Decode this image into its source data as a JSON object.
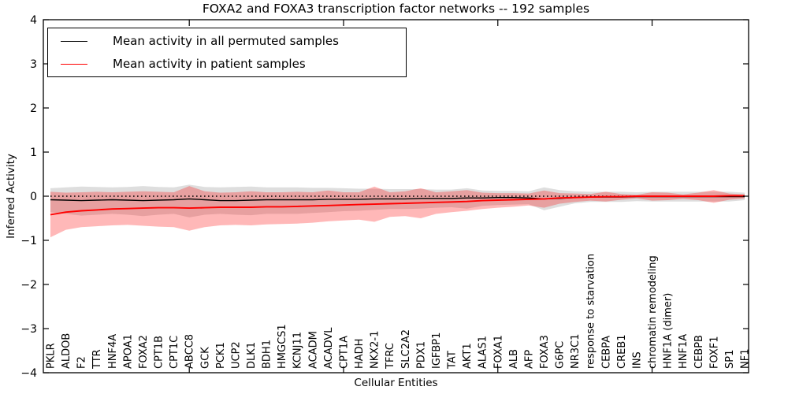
{
  "chart_data": {
    "type": "line",
    "title": "FOXA2 and FOXA3 transcription factor networks -- 192 samples",
    "xlabel": "Cellular Entities",
    "ylabel": "Inferred Activity",
    "ylim": [
      -4,
      4
    ],
    "yticks": [
      -4,
      -3,
      -2,
      -1,
      0,
      1,
      2,
      3,
      4
    ],
    "xtick_major_indices": [
      9,
      19,
      29,
      39
    ],
    "grid": false,
    "legend_position": "upper left",
    "zero_line": {
      "y": 0,
      "style": "dotted",
      "color": "#000000"
    },
    "categories": [
      "PKLR",
      "ALDOB",
      "F2",
      "TTR",
      "HNF4A",
      "APOA1",
      "FOXA2",
      "CPT1B",
      "CPT1C",
      "ABCC8",
      "GCK",
      "PCK1",
      "UCP2",
      "DLK1",
      "BDH1",
      "HMGCS1",
      "KCNJ11",
      "ACADM",
      "ACADVL",
      "CPT1A",
      "HADH",
      "NKX2-1",
      "TFRC",
      "SLC2A2",
      "PDX1",
      "IGFBP1",
      "TAT",
      "AKT1",
      "ALAS1",
      "FOXA1",
      "ALB",
      "AFP",
      "FOXA3",
      "G6PC",
      "NR3C1",
      "response to starvation",
      "CEBPA",
      "CREB1",
      "INS",
      "chromatin remodeling",
      "HNF1A (dimer)",
      "HNF1A",
      "CEBPB",
      "FOXF1",
      "SP1",
      "NF1"
    ],
    "series": [
      {
        "name": "Mean activity in all permuted samples",
        "color": "#000000",
        "line_width": 1.4,
        "band_fill": "rgba(0,0,0,0.13)",
        "values": [
          -0.08,
          -0.09,
          -0.1,
          -0.09,
          -0.08,
          -0.09,
          -0.1,
          -0.09,
          -0.08,
          -0.06,
          -0.08,
          -0.1,
          -0.1,
          -0.09,
          -0.08,
          -0.08,
          -0.08,
          -0.08,
          -0.07,
          -0.07,
          -0.07,
          -0.06,
          -0.06,
          -0.06,
          -0.05,
          -0.05,
          -0.05,
          -0.04,
          -0.04,
          -0.03,
          -0.03,
          -0.04,
          -0.06,
          -0.05,
          -0.03,
          -0.02,
          -0.02,
          -0.02,
          -0.01,
          -0.01,
          -0.01,
          -0.01,
          -0.01,
          -0.01,
          -0.01,
          -0.01
        ],
        "band_upper": [
          0.18,
          0.2,
          0.22,
          0.21,
          0.2,
          0.21,
          0.23,
          0.21,
          0.2,
          0.26,
          0.21,
          0.2,
          0.21,
          0.22,
          0.2,
          0.2,
          0.2,
          0.19,
          0.19,
          0.18,
          0.17,
          0.17,
          0.16,
          0.16,
          0.16,
          0.15,
          0.15,
          0.18,
          0.13,
          0.12,
          0.12,
          0.11,
          0.2,
          0.14,
          0.11,
          0.1,
          0.1,
          0.1,
          0.09,
          0.1,
          0.1,
          0.1,
          0.1,
          0.1,
          0.1,
          0.08
        ],
        "band_lower": [
          -0.36,
          -0.4,
          -0.44,
          -0.42,
          -0.4,
          -0.42,
          -0.45,
          -0.42,
          -0.4,
          -0.48,
          -0.42,
          -0.4,
          -0.42,
          -0.43,
          -0.4,
          -0.4,
          -0.4,
          -0.38,
          -0.36,
          -0.34,
          -0.33,
          -0.31,
          -0.29,
          -0.29,
          -0.28,
          -0.26,
          -0.25,
          -0.28,
          -0.22,
          -0.2,
          -0.19,
          -0.18,
          -0.32,
          -0.24,
          -0.16,
          -0.13,
          -0.13,
          -0.13,
          -0.11,
          -0.12,
          -0.12,
          -0.12,
          -0.12,
          -0.12,
          -0.12,
          -0.09
        ]
      },
      {
        "name": "Mean activity in patient samples",
        "color": "#ff0000",
        "line_width": 1.9,
        "band_fill": "rgba(255,0,0,0.28)",
        "values": [
          -0.42,
          -0.36,
          -0.33,
          -0.31,
          -0.29,
          -0.28,
          -0.27,
          -0.26,
          -0.26,
          -0.27,
          -0.26,
          -0.25,
          -0.25,
          -0.25,
          -0.24,
          -0.24,
          -0.23,
          -0.22,
          -0.21,
          -0.2,
          -0.19,
          -0.18,
          -0.17,
          -0.16,
          -0.15,
          -0.14,
          -0.13,
          -0.12,
          -0.1,
          -0.09,
          -0.08,
          -0.07,
          -0.06,
          -0.04,
          -0.03,
          -0.02,
          -0.01,
          -0.01,
          0.0,
          0.0,
          0.0,
          0.0,
          0.0,
          0.0,
          0.01,
          0.01
        ],
        "band_upper": [
          0.1,
          0.08,
          0.09,
          0.1,
          0.09,
          0.1,
          0.11,
          0.1,
          0.09,
          0.23,
          0.11,
          0.08,
          0.09,
          0.11,
          0.09,
          0.09,
          0.1,
          0.09,
          0.13,
          0.09,
          0.09,
          0.22,
          0.09,
          0.11,
          0.18,
          0.09,
          0.11,
          0.14,
          0.08,
          0.07,
          0.07,
          0.06,
          0.13,
          0.07,
          0.06,
          0.05,
          0.1,
          0.05,
          0.03,
          0.09,
          0.08,
          0.04,
          0.08,
          0.14,
          0.06,
          0.04
        ],
        "band_lower": [
          -0.93,
          -0.76,
          -0.7,
          -0.68,
          -0.66,
          -0.65,
          -0.67,
          -0.69,
          -0.7,
          -0.78,
          -0.7,
          -0.66,
          -0.65,
          -0.66,
          -0.64,
          -0.63,
          -0.62,
          -0.6,
          -0.57,
          -0.55,
          -0.53,
          -0.58,
          -0.47,
          -0.45,
          -0.5,
          -0.4,
          -0.36,
          -0.33,
          -0.29,
          -0.26,
          -0.24,
          -0.21,
          -0.26,
          -0.17,
          -0.13,
          -0.1,
          -0.12,
          -0.08,
          -0.05,
          -0.1,
          -0.09,
          -0.06,
          -0.09,
          -0.15,
          -0.08,
          -0.05
        ]
      }
    ]
  }
}
